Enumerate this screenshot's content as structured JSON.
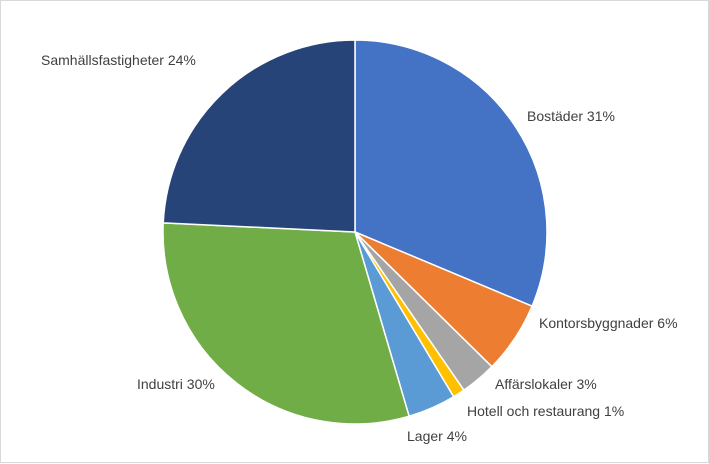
{
  "chart_data": {
    "type": "pie",
    "title": "",
    "categories": [
      "Bostäder",
      "Kontorsbyggnader",
      "Affärslokaler",
      "Hotell och restaurang",
      "Lager",
      "Industri",
      "Samhällsfastigheter"
    ],
    "values": [
      31,
      6,
      3,
      1,
      4,
      30,
      24
    ],
    "labels": [
      "Bostäder 31%",
      "Kontorsbyggnader 6%",
      "Affärslokaler 3%",
      "Hotell och restaurang 1%",
      "Lager 4%",
      "Industri 30%",
      "Samhällsfastigheter 24%"
    ],
    "colors": [
      "#4472C4",
      "#ED7D31",
      "#A5A5A5",
      "#FFC000",
      "#5B9BD5",
      "#70AD47",
      "#264478"
    ],
    "legend": "none",
    "start_angle": "12 o'clock, clockwise"
  }
}
